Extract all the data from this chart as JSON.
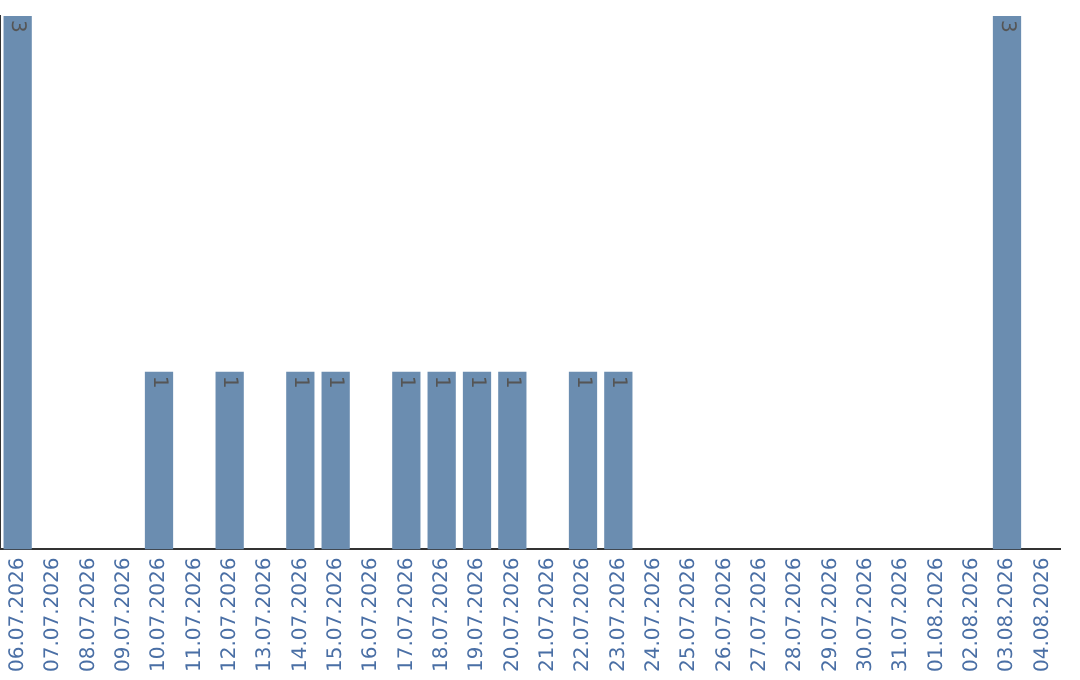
{
  "chart_data": {
    "type": "bar",
    "categories": [
      "06.07.2026",
      "07.07.2026",
      "08.07.2026",
      "09.07.2026",
      "10.07.2026",
      "11.07.2026",
      "12.07.2026",
      "13.07.2026",
      "14.07.2026",
      "15.07.2026",
      "16.07.2026",
      "17.07.2026",
      "18.07.2026",
      "19.07.2026",
      "20.07.2026",
      "21.07.2026",
      "22.07.2026",
      "23.07.2026",
      "24.07.2026",
      "25.07.2026",
      "26.07.2026",
      "27.07.2026",
      "28.07.2026",
      "29.07.2026",
      "30.07.2026",
      "31.07.2026",
      "01.08.2026",
      "02.08.2026",
      "03.08.2026",
      "04.08.2026"
    ],
    "values": [
      3,
      0,
      0,
      0,
      1,
      0,
      1,
      0,
      1,
      1,
      0,
      1,
      1,
      1,
      1,
      0,
      1,
      1,
      0,
      0,
      0,
      0,
      0,
      0,
      0,
      0,
      0,
      0,
      3,
      0
    ],
    "value_labels": [
      "3",
      null,
      null,
      null,
      "1",
      null,
      "1",
      null,
      "1",
      "1",
      null,
      "1",
      "1",
      "1",
      "1",
      null,
      "1",
      "1",
      null,
      null,
      null,
      null,
      null,
      null,
      null,
      null,
      null,
      null,
      "3",
      null
    ],
    "color": "#6b8db0",
    "ylim": [
      0,
      3
    ],
    "grid": false,
    "legend": false,
    "tick_labels": "x"
  }
}
